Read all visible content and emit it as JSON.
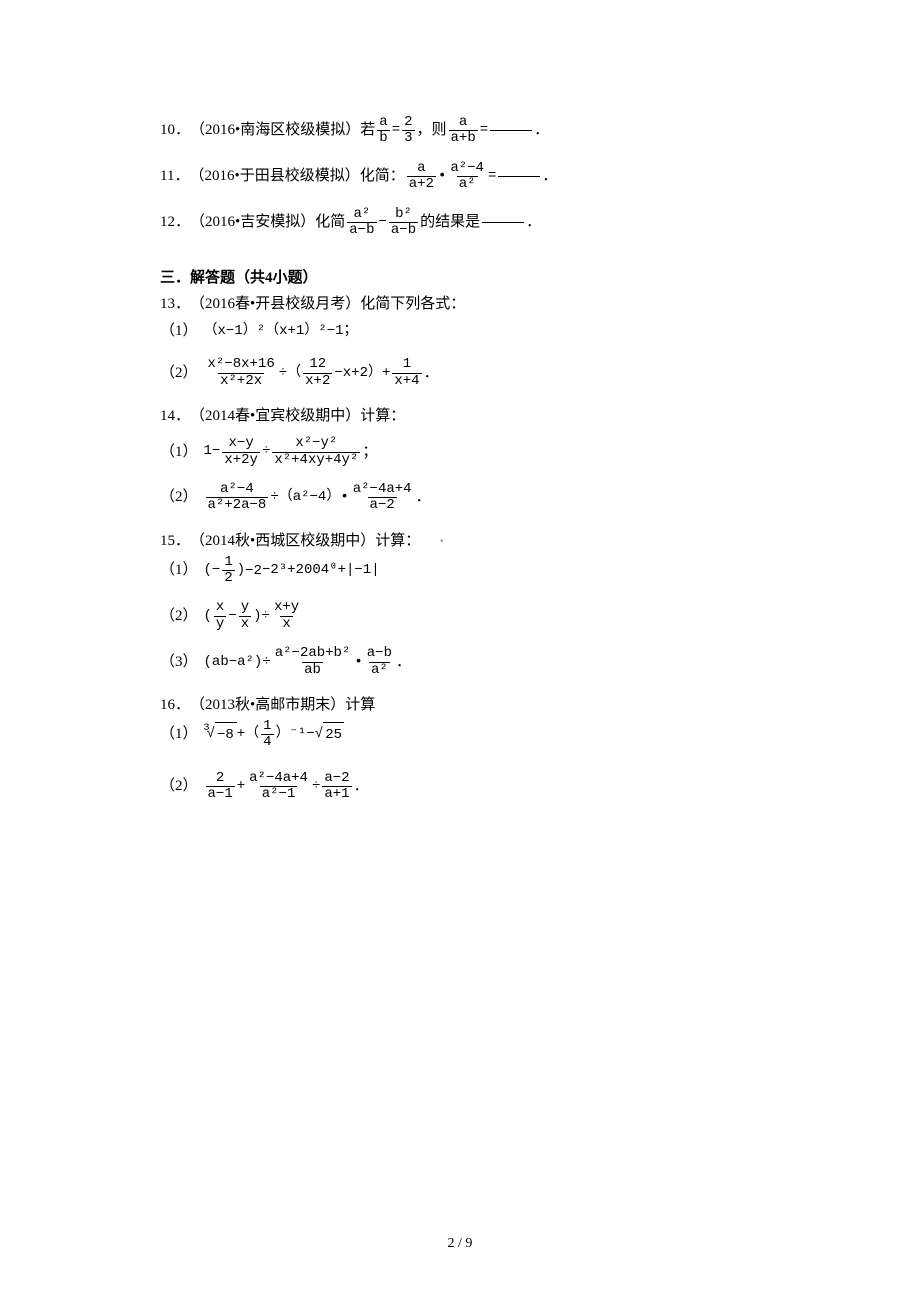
{
  "p10": {
    "num": "10．",
    "src": "（2016•南海区校级模拟）若",
    "a": "a",
    "b": "b",
    "r1n": "2",
    "r1d": "3",
    "txt2": "，则",
    "f2n": "a",
    "f2d": "a+b",
    "eq": "=",
    "period": "．"
  },
  "p11": {
    "num": "11．",
    "src": "（2016•于田县校级模拟）化简：",
    "f1n": "a",
    "f1d": "a+2",
    "dot": "•",
    "f2n": "a²−4",
    "f2d": "a²",
    "eq": "=",
    "period": "．"
  },
  "p12": {
    "num": "12．",
    "src": "（2016•吉安模拟）化简",
    "f1n": "a²",
    "f1d": "a−b",
    "minus": "−",
    "f2n": "b²",
    "f2d": "a−b",
    "txt2": "的结果是",
    "period": "．"
  },
  "section3": "三．解答题（共4小题）",
  "p13": {
    "num": "13．",
    "src": "（2016春•开县校级月考）化简下列各式：",
    "s1label": "（1）",
    "s1": "（x−1）²（x+1）²−1；",
    "s2label": "（2）",
    "s2_f1n": "x²−8x+16",
    "s2_f1d": "x²+2x",
    "s2_div": "÷（",
    "s2_f2n": "12",
    "s2_f2d": "x+2",
    "s2_mid": "−x+2）+",
    "s2_f3n": "1",
    "s2_f3d": "x+4",
    "s2_end": "．"
  },
  "p14": {
    "num": "14．",
    "src": "（2014春•宜宾校级期中）计算：",
    "s1label": "（1）",
    "s1_one": "1−",
    "s1_f1n": "x−y",
    "s1_f1d": "x+2y",
    "s1_div": "÷",
    "s1_f2n": "x²−y²",
    "s1_f2d": "x²+4xy+4y²",
    "s1_end": "；",
    "s2label": "（2）",
    "s2_f1n": "a²−4",
    "s2_f1d": "a²+2a−8",
    "s2_div": "÷（a²−4）•",
    "s2_f2n": "a²−4a+4",
    "s2_f2d": "a−2",
    "s2_end": "．"
  },
  "p15": {
    "num": "15．",
    "src": "（2014秋•西城区校级期中）计算：",
    "s1label": "（1）",
    "s1a": "(−",
    "s1_f1n": "1",
    "s1_f1d": "2",
    "s1b": ")",
    "s1exp": "−2",
    "s1c": "−2³+2004⁰+|−1|",
    "s2label": "（2）",
    "s2a": "(",
    "s2_f1n": "x",
    "s2_f1d": "y",
    "s2minus": "−",
    "s2_f2n": "y",
    "s2_f2d": "x",
    "s2b": ")÷",
    "s2_f3n": "x+y",
    "s2_f3d": "x",
    "s3label": "（3）",
    "s3a": "(ab−a²)÷",
    "s3_f1n": "a²−2ab+b²",
    "s3_f1d": "ab",
    "s3dot": "•",
    "s3_f2n": "a−b",
    "s3_f2d": "a²",
    "s3end": "．"
  },
  "p16": {
    "num": "16．",
    "src": "（2013秋•高邮市期末）计算",
    "s1label": "（1）",
    "s1_rootidx": "3",
    "s1_rootval": "−8",
    "s1_plus": "+（",
    "s1_f1n": "1",
    "s1_f1d": "4",
    "s1_exp": "）⁻¹−",
    "s1_sqrtval": "25",
    "s2label": "（2）",
    "s2_f1n": "2",
    "s2_f1d": "a−1",
    "s2_plus": "+",
    "s2_f2n": "a²−4a+4",
    "s2_f2d": "a²−1",
    "s2_div": "÷",
    "s2_f3n": "a−2",
    "s2_f3d": "a+1",
    "s2_end": "．"
  },
  "footer": "2 / 9",
  "dot": "▪"
}
